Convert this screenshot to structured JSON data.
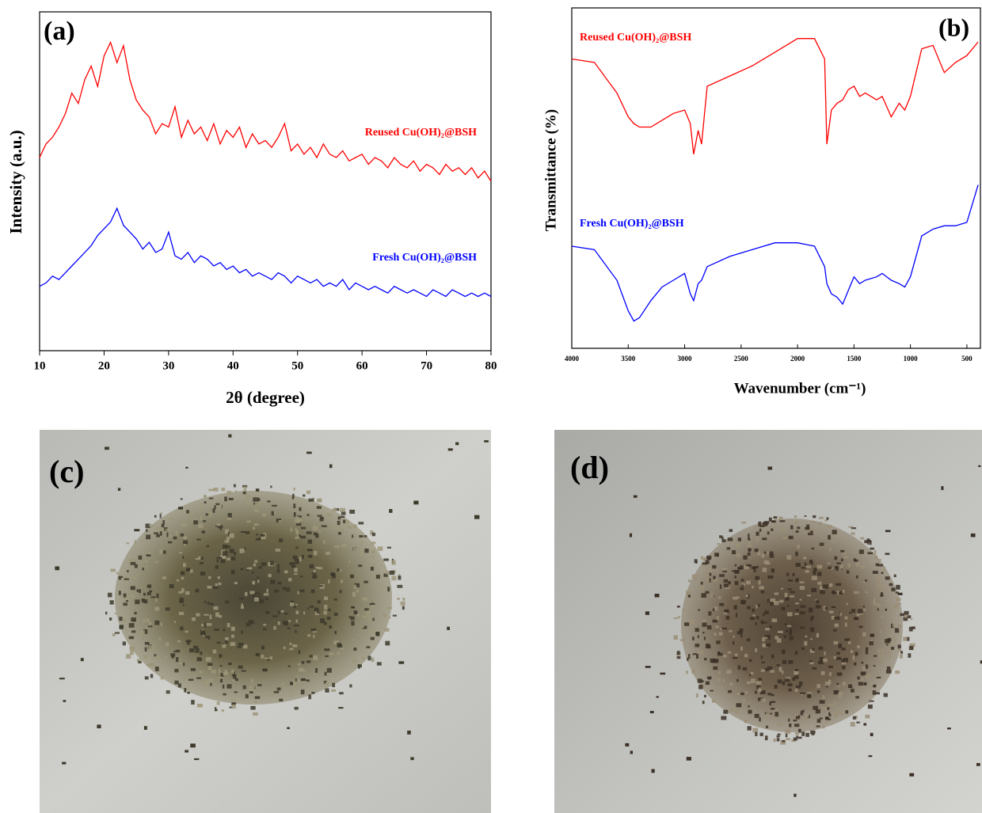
{
  "chart_data": [
    {
      "type": "line",
      "panel_label": "(a)",
      "xlabel": "2θ (degree)",
      "ylabel": "Intensity (a.u.)",
      "xlim": [
        10,
        80
      ],
      "xticks": [
        10,
        20,
        30,
        40,
        50,
        60,
        70,
        80
      ],
      "ylim": [
        0,
        100
      ],
      "x": [
        10,
        11,
        12,
        13,
        14,
        15,
        16,
        17,
        18,
        19,
        20,
        21,
        22,
        23,
        24,
        25,
        26,
        27,
        28,
        29,
        30,
        31,
        32,
        33,
        34,
        35,
        36,
        37,
        38,
        39,
        40,
        41,
        42,
        43,
        44,
        45,
        46,
        47,
        48,
        49,
        50,
        51,
        52,
        53,
        54,
        55,
        56,
        57,
        58,
        59,
        60,
        61,
        62,
        63,
        64,
        65,
        66,
        67,
        68,
        69,
        70,
        71,
        72,
        73,
        74,
        75,
        76,
        77,
        78,
        79,
        80
      ],
      "series": [
        {
          "name": "Reused Cu(OH)₂@BSH",
          "color": "#ff0000",
          "values": [
            57,
            61,
            63,
            66,
            70,
            76,
            73,
            80,
            84,
            78,
            87,
            91,
            85,
            90,
            80,
            74,
            71,
            69,
            64,
            67,
            66,
            72,
            63,
            68,
            64,
            66,
            62,
            67,
            61,
            65,
            63,
            66,
            60,
            64,
            61,
            62,
            60,
            63,
            67,
            59,
            61,
            58,
            60,
            57,
            61,
            58,
            57,
            59,
            56,
            57,
            58,
            55,
            57,
            56,
            54,
            57,
            55,
            54,
            56,
            53,
            55,
            54,
            52,
            55,
            53,
            54,
            52,
            54,
            51,
            53,
            50
          ]
        },
        {
          "name": "Fresh Cu(OH)₂@BSH",
          "color": "#0000ff",
          "values": [
            19,
            20,
            22,
            21,
            23,
            25,
            27,
            29,
            31,
            34,
            36,
            38,
            42,
            37,
            35,
            33,
            30,
            32,
            29,
            30,
            35,
            28,
            27,
            29,
            26,
            28,
            27,
            25,
            26,
            24,
            25,
            23,
            24,
            22,
            23,
            22,
            21,
            23,
            22,
            20,
            22,
            21,
            20,
            21,
            19,
            20,
            19,
            21,
            18,
            20,
            19,
            18,
            19,
            18,
            17,
            19,
            18,
            17,
            18,
            17,
            16,
            18,
            17,
            16,
            18,
            17,
            16,
            17,
            16,
            17,
            16
          ]
        }
      ]
    },
    {
      "type": "line",
      "panel_label": "(b)",
      "xlabel": "Wavenumber (cm⁻¹)",
      "ylabel": "Transmittance (%)",
      "xlim": [
        4000,
        380
      ],
      "xticks": [
        4000,
        3500,
        3000,
        2500,
        2000,
        1500,
        1000,
        500
      ],
      "ylim": [
        0,
        100
      ],
      "x": [
        4000,
        3800,
        3600,
        3500,
        3450,
        3400,
        3300,
        3200,
        3100,
        3000,
        2950,
        2920,
        2880,
        2850,
        2800,
        2600,
        2400,
        2200,
        2000,
        1850,
        1760,
        1740,
        1700,
        1650,
        1600,
        1550,
        1500,
        1450,
        1400,
        1300,
        1250,
        1170,
        1100,
        1050,
        1000,
        900,
        800,
        700,
        600,
        500,
        400
      ],
      "series": [
        {
          "name": "Reused Cu(OH)₂@BSH",
          "color": "#ff0000",
          "values": [
            85,
            84,
            75,
            68,
            66,
            65,
            65,
            67,
            69,
            70,
            66,
            57,
            64,
            60,
            77,
            80,
            83,
            87,
            91,
            91,
            85,
            60,
            70,
            72,
            73,
            76,
            77,
            74,
            75,
            73,
            74,
            68,
            72,
            70,
            74,
            88,
            89,
            81,
            84,
            86,
            90
          ]
        },
        {
          "name": "Fresh Cu(OH)₂@BSH",
          "color": "#0000ff",
          "values": [
            30,
            29,
            20,
            11,
            8,
            9,
            14,
            18,
            20,
            22,
            16,
            14,
            19,
            20,
            24,
            27,
            29,
            31,
            31,
            30,
            24,
            19,
            16,
            15,
            13,
            17,
            21,
            19,
            20,
            21,
            22,
            20,
            19,
            18,
            21,
            33,
            35,
            36,
            36,
            37,
            48
          ]
        }
      ]
    }
  ],
  "photos": [
    {
      "label": "(c)"
    },
    {
      "label": "(d)"
    }
  ]
}
